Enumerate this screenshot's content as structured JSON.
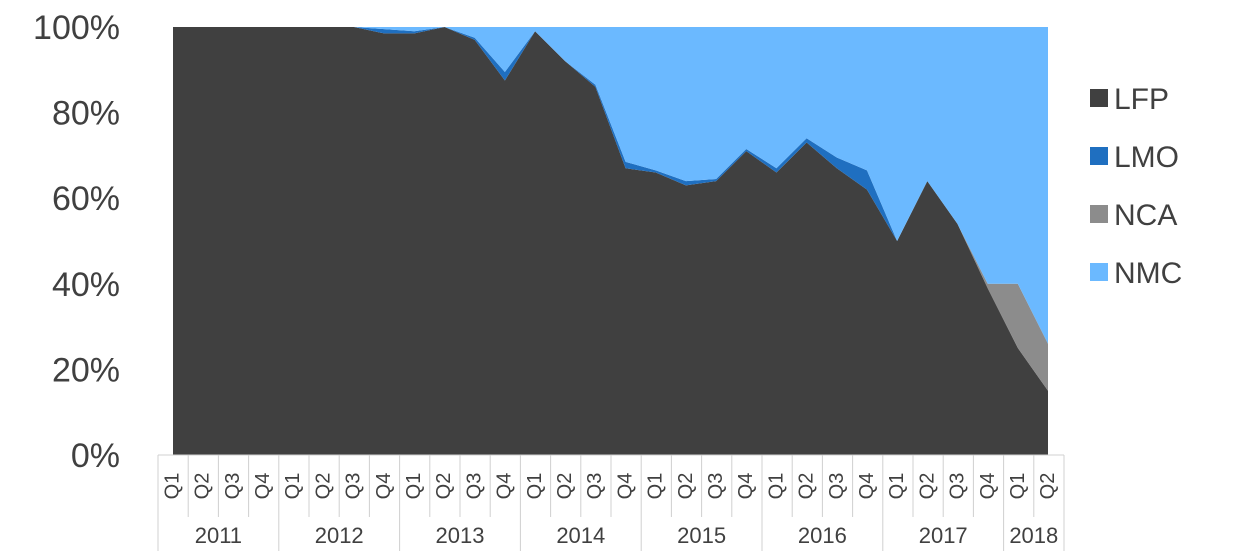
{
  "chart_data": {
    "type": "area",
    "stacked": true,
    "percent": true,
    "y_tick_labels": [
      "0%",
      "20%",
      "40%",
      "60%",
      "80%",
      "100%"
    ],
    "ylim": [
      0,
      100
    ],
    "legend_position": "right",
    "x": [
      {
        "year": "2011",
        "quarter": "Q1"
      },
      {
        "year": "2011",
        "quarter": "Q2"
      },
      {
        "year": "2011",
        "quarter": "Q3"
      },
      {
        "year": "2011",
        "quarter": "Q4"
      },
      {
        "year": "2012",
        "quarter": "Q1"
      },
      {
        "year": "2012",
        "quarter": "Q2"
      },
      {
        "year": "2012",
        "quarter": "Q3"
      },
      {
        "year": "2012",
        "quarter": "Q4"
      },
      {
        "year": "2013",
        "quarter": "Q1"
      },
      {
        "year": "2013",
        "quarter": "Q2"
      },
      {
        "year": "2013",
        "quarter": "Q3"
      },
      {
        "year": "2013",
        "quarter": "Q4"
      },
      {
        "year": "2014",
        "quarter": "Q1"
      },
      {
        "year": "2014",
        "quarter": "Q2"
      },
      {
        "year": "2014",
        "quarter": "Q3"
      },
      {
        "year": "2014",
        "quarter": "Q4"
      },
      {
        "year": "2015",
        "quarter": "Q1"
      },
      {
        "year": "2015",
        "quarter": "Q2"
      },
      {
        "year": "2015",
        "quarter": "Q3"
      },
      {
        "year": "2015",
        "quarter": "Q4"
      },
      {
        "year": "2016",
        "quarter": "Q1"
      },
      {
        "year": "2016",
        "quarter": "Q2"
      },
      {
        "year": "2016",
        "quarter": "Q3"
      },
      {
        "year": "2016",
        "quarter": "Q4"
      },
      {
        "year": "2017",
        "quarter": "Q1"
      },
      {
        "year": "2017",
        "quarter": "Q2"
      },
      {
        "year": "2017",
        "quarter": "Q3"
      },
      {
        "year": "2017",
        "quarter": "Q4"
      },
      {
        "year": "2018",
        "quarter": "Q1"
      },
      {
        "year": "2018",
        "quarter": "Q2"
      }
    ],
    "years": [
      "2011",
      "2012",
      "2013",
      "2014",
      "2015",
      "2016",
      "2017",
      "2018"
    ],
    "series": [
      {
        "name": "LFP",
        "color": "#404040",
        "values": [
          100,
          100,
          100,
          100,
          100,
          100,
          100,
          98.5,
          98.5,
          100,
          97,
          87.5,
          99,
          92,
          86,
          67,
          66,
          63,
          64,
          71,
          66,
          73,
          67,
          62,
          50,
          64,
          54,
          39,
          25,
          15
        ]
      },
      {
        "name": "LMO",
        "color": "#1f6fc0",
        "values": [
          0,
          0,
          0,
          0,
          0,
          0,
          0,
          1,
          0.5,
          0,
          0.5,
          2,
          0,
          0,
          0.5,
          1.5,
          0.5,
          1,
          0.5,
          0.5,
          1,
          1,
          2.5,
          4.5,
          0,
          0,
          0,
          0,
          0,
          0
        ]
      },
      {
        "name": "NCA",
        "color": "#8c8c8c",
        "values": [
          0,
          0,
          0,
          0,
          0,
          0,
          0,
          0,
          0,
          0,
          0,
          0,
          0,
          0,
          0,
          0,
          0,
          0,
          0,
          0,
          0,
          0,
          0,
          0,
          0,
          0,
          0,
          1,
          15,
          11
        ]
      },
      {
        "name": "NMC",
        "color": "#6bb9ff",
        "values": [
          0,
          0,
          0,
          0,
          0,
          0,
          0,
          0.5,
          1,
          0,
          2.5,
          10.5,
          1,
          8,
          13.5,
          31.5,
          33.5,
          36,
          35.5,
          28.5,
          33,
          26,
          30.5,
          33.5,
          50,
          36,
          46,
          60,
          60,
          74
        ]
      }
    ]
  }
}
